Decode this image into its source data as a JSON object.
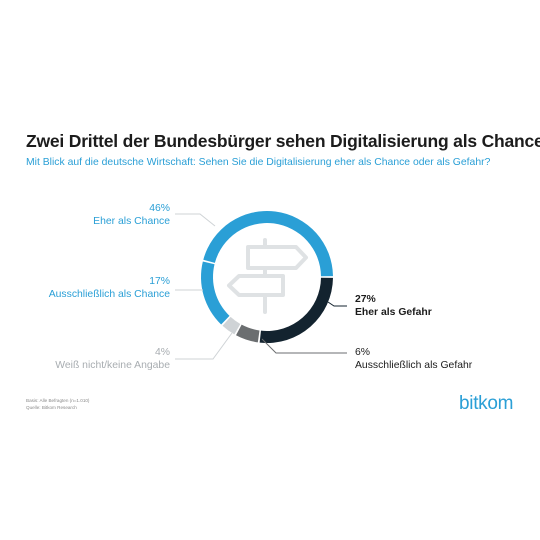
{
  "chart_data": {
    "type": "pie",
    "donut": true,
    "title": "Zwei Drittel der Bundesbürger sehen Digitalisierung als Chance",
    "subtitle": "Mit Blick auf die deutsche Wirtschaft: Sehen Sie die Digitalisierung eher als Chance oder als Gefahr?",
    "slices": [
      {
        "label": "Eher als Chance",
        "value": 46,
        "display": "46%",
        "color": "#2a9fd6"
      },
      {
        "label": "Ausschließlich als Chance",
        "value": 17,
        "display": "17%",
        "color": "#2a9fd6"
      },
      {
        "label": "Weiß nicht/keine Angabe",
        "value": 4,
        "display": "4%",
        "color": "#cfd3d6"
      },
      {
        "label": "Ausschließlich als Gefahr",
        "value": 6,
        "display": "6%",
        "color": "#6b6e70"
      },
      {
        "label": "Eher als Gefahr",
        "value": 27,
        "display": "27%",
        "color": "#13232f"
      }
    ],
    "center_icon": "signpost-icon"
  },
  "footnote": {
    "basis": "Basis: Alle Befragten (n=1.010)",
    "source": "Quelle: Bitkom Research"
  },
  "brand": {
    "logo_text": "bitkom",
    "accent_color": "#2a9fd6"
  },
  "colors": {
    "chance": "#2a9fd6",
    "neutral": "#cfd3d6",
    "label_neutral": "#a8adb1",
    "gefahr_light": "#6b6e70",
    "gefahr_dark": "#13232f",
    "text_dark": "#1c1c1c"
  }
}
